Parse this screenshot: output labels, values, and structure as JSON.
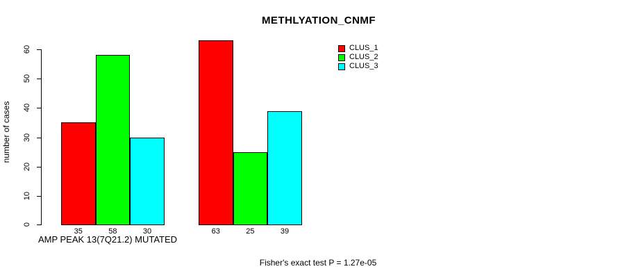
{
  "chart_data": {
    "type": "bar",
    "title": "METHLYATION_CNMF",
    "ylabel": "number of cases",
    "xlabel": "AMP PEAK 13(7Q21.2) MUTATED",
    "ylim": [
      0,
      60
    ],
    "yticks": [
      0,
      10,
      20,
      30,
      40,
      50,
      60
    ],
    "grid": false,
    "legend_position": "top-right",
    "bar_border_color": "#000000",
    "series": [
      {
        "name": "CLUS_1",
        "color": "#ff0000",
        "values": [
          35,
          63
        ]
      },
      {
        "name": "CLUS_2",
        "color": "#00ff00",
        "values": [
          58,
          25
        ]
      },
      {
        "name": "CLUS_3",
        "color": "#00ffff",
        "values": [
          30,
          39
        ]
      }
    ],
    "bar_value_labels": [
      [
        35,
        58,
        30
      ],
      [
        63,
        25,
        39
      ]
    ]
  },
  "footer": {
    "text": "Fisher's exact test P = 1.27e-05"
  }
}
